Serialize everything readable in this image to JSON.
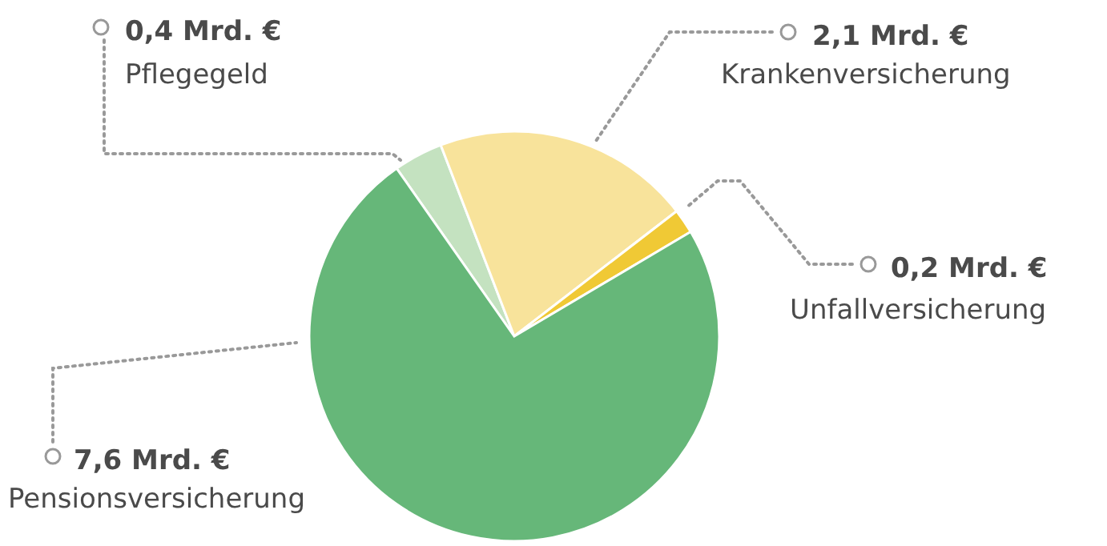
{
  "chart_data": {
    "type": "pie",
    "categories": [
      "Pflegegeld",
      "Krankenversicherung",
      "Unfallversicherung",
      "Pensionsversicherung"
    ],
    "values": [
      0.4,
      2.1,
      0.2,
      7.6
    ],
    "colors": [
      "#c4e2c0",
      "#f8e39b",
      "#f0c935",
      "#66b779"
    ],
    "value_labels": [
      "0,4 Mrd. €",
      "2,1 Mrd. €",
      "0,2 Mrd. €",
      "7,6 Mrd. €"
    ]
  }
}
